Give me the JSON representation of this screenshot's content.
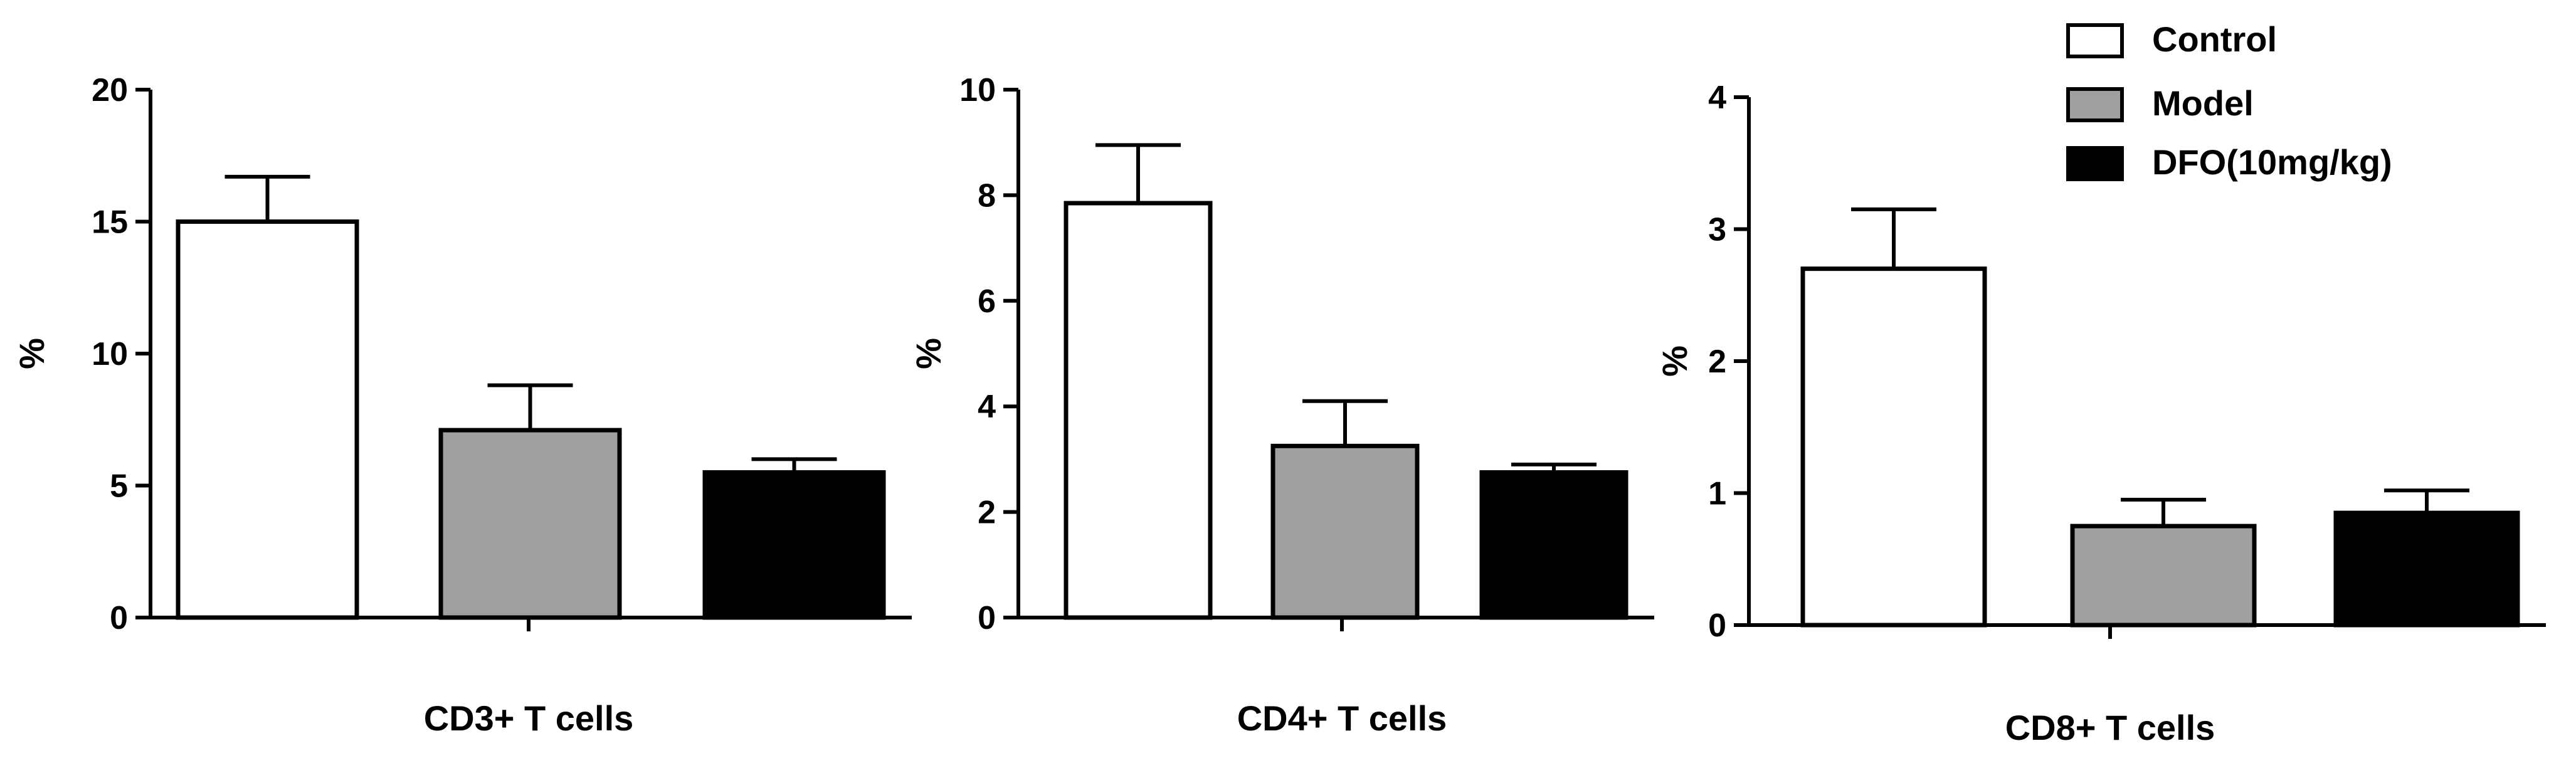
{
  "legend": {
    "position": "top-right",
    "entries": [
      {
        "label": "Control",
        "color": "#ffffff"
      },
      {
        "label": "Model",
        "color": "#a0a0a0"
      },
      {
        "label": "DFO(10mg/kg)",
        "color": "#000000"
      }
    ]
  },
  "chart_data": [
    {
      "type": "bar",
      "title": "",
      "xlabel": "CD3+ T cells",
      "ylabel": "%",
      "ylim": [
        0,
        20
      ],
      "yticks": [
        0,
        5,
        10,
        15,
        20
      ],
      "grid": false,
      "categories": [
        "Control",
        "Model",
        "DFO(10mg/kg)"
      ],
      "values": [
        15.0,
        7.1,
        5.5
      ],
      "errors": [
        1.7,
        1.7,
        0.5
      ],
      "colors": [
        "#ffffff",
        "#a0a0a0",
        "#000000"
      ]
    },
    {
      "type": "bar",
      "title": "",
      "xlabel": "CD4+ T cells",
      "ylabel": "%",
      "ylim": [
        0,
        10
      ],
      "yticks": [
        0,
        2,
        4,
        6,
        8,
        10
      ],
      "grid": false,
      "categories": [
        "Control",
        "Model",
        "DFO(10mg/kg)"
      ],
      "values": [
        7.85,
        3.25,
        2.75
      ],
      "errors": [
        1.1,
        0.85,
        0.15
      ],
      "colors": [
        "#ffffff",
        "#a0a0a0",
        "#000000"
      ]
    },
    {
      "type": "bar",
      "title": "",
      "xlabel": "CD8+ T cells",
      "ylabel": "%",
      "ylim": [
        0,
        4
      ],
      "yticks": [
        0,
        1,
        2,
        3,
        4
      ],
      "grid": false,
      "categories": [
        "Control",
        "Model",
        "DFO(10mg/kg)"
      ],
      "values": [
        2.7,
        0.75,
        0.85
      ],
      "errors": [
        0.45,
        0.2,
        0.17
      ],
      "colors": [
        "#ffffff",
        "#a0a0a0",
        "#000000"
      ]
    }
  ]
}
